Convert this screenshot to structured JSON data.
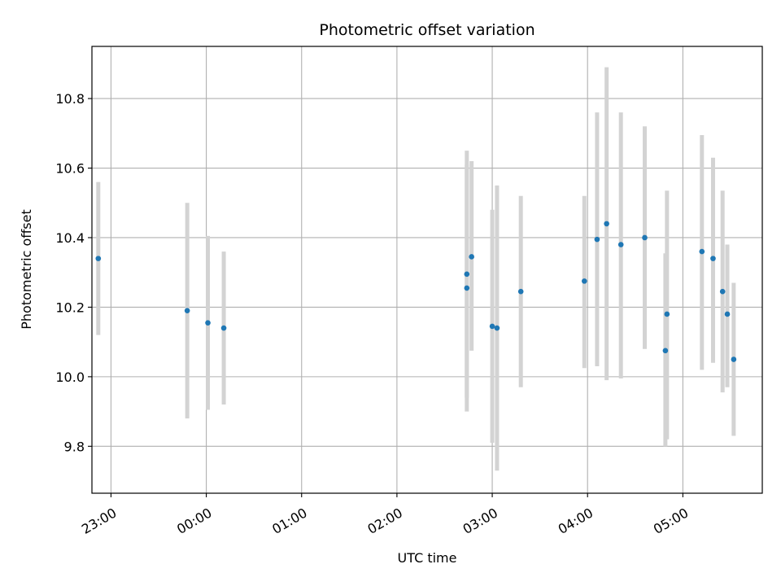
{
  "chart_data": {
    "type": "scatter",
    "title": "Photometric offset variation",
    "xlabel": "UTC time",
    "ylabel": "Photometric offset",
    "x_axis": "time",
    "xlim": [
      "22:48",
      "05:50"
    ],
    "ylim": [
      9.665,
      10.95
    ],
    "x_ticks": [
      "23:00",
      "00:00",
      "01:00",
      "02:00",
      "03:00",
      "04:00",
      "05:00"
    ],
    "y_ticks": [
      "9.8",
      "10.0",
      "10.2",
      "10.4",
      "10.6",
      "10.8"
    ],
    "grid": true,
    "legend": "none",
    "colors": {
      "point": "#1f77b4",
      "error_bar": "#d3d3d3",
      "grid": "#b0b0b0"
    },
    "points": [
      {
        "time": "22:52",
        "y": 10.34,
        "low": 10.12,
        "high": 10.56
      },
      {
        "time": "23:48",
        "y": 10.19,
        "low": 9.88,
        "high": 10.5
      },
      {
        "time": "00:01",
        "y": 10.155,
        "low": 9.905,
        "high": 10.405
      },
      {
        "time": "00:11",
        "y": 10.14,
        "low": 9.92,
        "high": 10.36
      },
      {
        "time": "02:44",
        "y": 10.295,
        "low": 9.94,
        "high": 10.65
      },
      {
        "time": "02:44",
        "y": 10.255,
        "low": 9.9,
        "high": 10.61
      },
      {
        "time": "02:47",
        "y": 10.345,
        "low": 10.075,
        "high": 10.62
      },
      {
        "time": "03:00",
        "y": 10.145,
        "low": 9.81,
        "high": 10.48
      },
      {
        "time": "03:03",
        "y": 10.14,
        "low": 9.73,
        "high": 10.55
      },
      {
        "time": "03:18",
        "y": 10.245,
        "low": 9.97,
        "high": 10.52
      },
      {
        "time": "03:58",
        "y": 10.275,
        "low": 10.025,
        "high": 10.52
      },
      {
        "time": "04:06",
        "y": 10.395,
        "low": 10.03,
        "high": 10.76
      },
      {
        "time": "04:12",
        "y": 10.44,
        "low": 9.99,
        "high": 10.89
      },
      {
        "time": "04:21",
        "y": 10.38,
        "low": 9.995,
        "high": 10.76
      },
      {
        "time": "04:36",
        "y": 10.4,
        "low": 10.08,
        "high": 10.72
      },
      {
        "time": "04:49",
        "y": 10.075,
        "low": 9.8,
        "high": 10.355
      },
      {
        "time": "04:50",
        "y": 10.18,
        "low": 9.82,
        "high": 10.535
      },
      {
        "time": "05:12",
        "y": 10.36,
        "low": 10.02,
        "high": 10.695
      },
      {
        "time": "05:19",
        "y": 10.34,
        "low": 10.04,
        "high": 10.63
      },
      {
        "time": "05:25",
        "y": 10.245,
        "low": 9.955,
        "high": 10.535
      },
      {
        "time": "05:28",
        "y": 10.18,
        "low": 9.97,
        "high": 10.38
      },
      {
        "time": "05:32",
        "y": 10.05,
        "low": 9.83,
        "high": 10.27
      }
    ]
  }
}
